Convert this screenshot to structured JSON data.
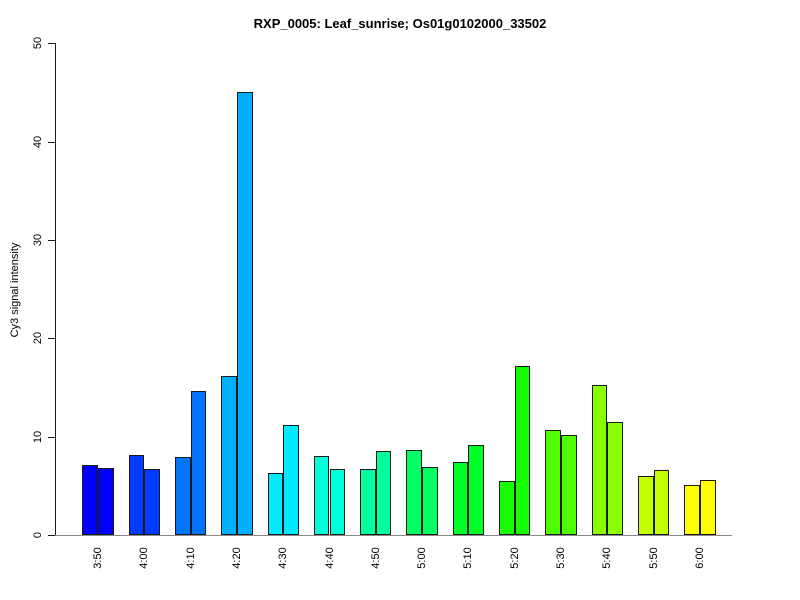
{
  "page": {
    "background_color": "#ffffff",
    "text_color": "#000000"
  },
  "chart_data": {
    "type": "bar",
    "title": "RXP_0005: Leaf_sunrise; Os01g0102000_33502",
    "xlabel": "",
    "ylabel": "Cy3 signal intensity",
    "ylim": [
      0,
      50
    ],
    "yticks": [
      0,
      10,
      20,
      30,
      40,
      50
    ],
    "grid": false,
    "legend": false,
    "categories": [
      "3:50",
      "4:00",
      "4:10",
      "4:20",
      "4:30",
      "4:40",
      "4:50",
      "5:00",
      "5:10",
      "5:20",
      "5:30",
      "5:40",
      "5:50",
      "6:00"
    ],
    "series": [
      {
        "name": "",
        "values": [
          7.1,
          8.1,
          7.9,
          16.2,
          6.3,
          8.0,
          6.7,
          8.6,
          7.4,
          5.5,
          10.7,
          15.3,
          6.0,
          5.1
        ]
      },
      {
        "name": "",
        "values": [
          6.8,
          6.7,
          14.6,
          45.0,
          11.2,
          6.7,
          8.5,
          6.9,
          9.2,
          17.2,
          10.2,
          11.5,
          6.6,
          5.6
        ]
      }
    ],
    "pair_colors": [
      "#0000FF",
      "#003BFF",
      "#0076FF",
      "#00B0FF",
      "#00EBFF",
      "#00FFD8",
      "#00FF9D",
      "#00FF62",
      "#00FF27",
      "#14FF00",
      "#4EFF00",
      "#89FF00",
      "#C4FF00",
      "#FFFF00"
    ],
    "bar_border_color": "#1a1a1a",
    "axis_color": "#1a1a1a",
    "baseline_color": "#8a8a8a"
  }
}
